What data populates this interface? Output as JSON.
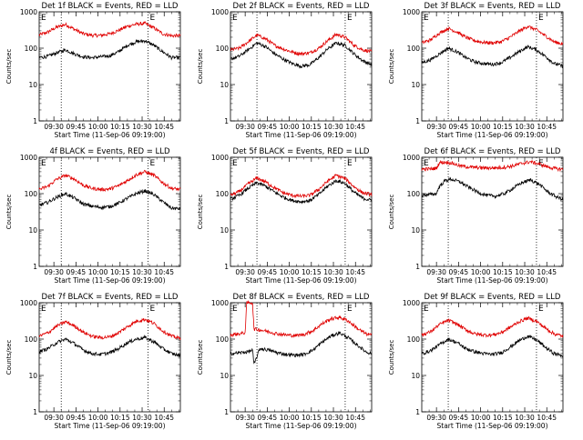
{
  "chart_data": {
    "type": "line",
    "ylabel": "Counts/sec",
    "yscale": "log",
    "ylim": [
      1,
      1000
    ],
    "y_ticks": [
      "1",
      "10",
      "100",
      "1000"
    ],
    "x_ticks": [
      "09:30",
      "09:45",
      "10:00",
      "10:15",
      "10:30",
      "10:45"
    ],
    "x_tick_minutes": [
      30,
      45,
      60,
      75,
      90,
      105
    ],
    "xlim_minutes": [
      20,
      116
    ],
    "xlabel": "Start Time (11-Sep-06 09:19:00)",
    "marker_label": "E",
    "series_colors": {
      "events": "#000000",
      "lld": "#e00000"
    },
    "panels": [
      {
        "title": "Det 1f BLACK = Events, RED = LLD",
        "vlines_minutes": [
          35,
          94
        ],
        "events": {
          "x": [
            20,
            26,
            32,
            38,
            44,
            50,
            56,
            62,
            68,
            74,
            80,
            86,
            92,
            98,
            104,
            110,
            116
          ],
          "y": [
            55,
            60,
            75,
            90,
            70,
            58,
            55,
            58,
            62,
            80,
            120,
            150,
            160,
            120,
            80,
            55,
            55
          ]
        },
        "lld": {
          "x": [
            20,
            26,
            32,
            38,
            44,
            50,
            56,
            62,
            68,
            74,
            80,
            86,
            92,
            98,
            104,
            110,
            116
          ],
          "y": [
            230,
            280,
            380,
            450,
            330,
            250,
            225,
            225,
            250,
            310,
            400,
            460,
            480,
            360,
            250,
            220,
            220
          ]
        }
      },
      {
        "title": "Det 2f BLACK = Events, RED = LLD",
        "vlines_minutes": [
          38,
          98
        ],
        "events": {
          "x": [
            20,
            26,
            32,
            38,
            44,
            50,
            56,
            62,
            68,
            74,
            80,
            86,
            92,
            98,
            104,
            110,
            116
          ],
          "y": [
            50,
            60,
            90,
            140,
            110,
            70,
            50,
            38,
            32,
            35,
            55,
            95,
            140,
            120,
            70,
            45,
            35
          ]
        },
        "lld": {
          "x": [
            20,
            26,
            32,
            38,
            44,
            50,
            56,
            62,
            68,
            74,
            80,
            86,
            92,
            98,
            104,
            110,
            116
          ],
          "y": [
            90,
            100,
            150,
            230,
            180,
            120,
            95,
            78,
            70,
            75,
            100,
            160,
            240,
            200,
            120,
            90,
            80
          ]
        }
      },
      {
        "title": "Det 3f BLACK = Events, RED = LLD",
        "vlines_minutes": [
          38,
          98
        ],
        "events": {
          "x": [
            20,
            26,
            32,
            38,
            44,
            50,
            56,
            62,
            68,
            74,
            80,
            86,
            92,
            98,
            104,
            110,
            116
          ],
          "y": [
            40,
            48,
            70,
            100,
            80,
            55,
            42,
            38,
            36,
            40,
            55,
            80,
            110,
            90,
            60,
            38,
            32
          ]
        },
        "lld": {
          "x": [
            20,
            26,
            32,
            38,
            44,
            50,
            56,
            62,
            68,
            74,
            80,
            86,
            92,
            98,
            104,
            110,
            116
          ],
          "y": [
            140,
            170,
            260,
            350,
            280,
            200,
            160,
            145,
            140,
            150,
            200,
            290,
            400,
            320,
            220,
            150,
            130
          ]
        }
      },
      {
        "title": "4f BLACK = Events, RED = LLD",
        "vlines_minutes": [
          35,
          94
        ],
        "events": {
          "x": [
            20,
            26,
            32,
            38,
            44,
            50,
            56,
            62,
            68,
            74,
            80,
            86,
            92,
            98,
            104,
            110,
            116
          ],
          "y": [
            48,
            58,
            80,
            100,
            75,
            52,
            45,
            42,
            44,
            55,
            75,
            100,
            120,
            95,
            60,
            40,
            38
          ]
        },
        "lld": {
          "x": [
            20,
            26,
            32,
            38,
            44,
            50,
            56,
            62,
            68,
            74,
            80,
            86,
            92,
            98,
            104,
            110,
            116
          ],
          "y": [
            130,
            160,
            250,
            320,
            250,
            170,
            140,
            130,
            135,
            165,
            230,
            330,
            400,
            320,
            200,
            140,
            130
          ]
        }
      },
      {
        "title": "Det 5f BLACK = Events, RED = LLD",
        "vlines_minutes": [
          38,
          98
        ],
        "events": {
          "x": [
            20,
            26,
            32,
            38,
            44,
            50,
            56,
            62,
            68,
            74,
            80,
            86,
            92,
            98,
            104,
            110,
            116
          ],
          "y": [
            70,
            90,
            140,
            200,
            160,
            110,
            80,
            65,
            60,
            65,
            95,
            160,
            230,
            190,
            110,
            75,
            65
          ]
        },
        "lld": {
          "x": [
            20,
            26,
            32,
            38,
            44,
            50,
            56,
            62,
            68,
            74,
            80,
            86,
            92,
            98,
            104,
            110,
            116
          ],
          "y": [
            90,
            115,
            185,
            270,
            210,
            145,
            105,
            90,
            85,
            90,
            130,
            220,
            320,
            260,
            155,
            105,
            95
          ]
        }
      },
      {
        "title": "Det 6f BLACK = Events, RED = LLD",
        "vlines_minutes": [
          38,
          98
        ],
        "events": {
          "x": [
            20,
            26,
            30,
            32,
            36,
            40,
            46,
            52,
            58,
            64,
            70,
            76,
            82,
            88,
            94,
            100,
            106,
            112,
            116
          ],
          "y": [
            90,
            95,
            100,
            160,
            230,
            250,
            210,
            150,
            110,
            90,
            85,
            100,
            140,
            200,
            240,
            180,
            110,
            80,
            70
          ]
        },
        "lld": {
          "x": [
            20,
            26,
            30,
            32,
            36,
            40,
            46,
            52,
            58,
            64,
            70,
            76,
            82,
            88,
            94,
            100,
            106,
            112,
            116
          ],
          "y": [
            470,
            480,
            500,
            720,
            730,
            700,
            580,
            540,
            520,
            510,
            510,
            530,
            580,
            680,
            750,
            650,
            540,
            480,
            470
          ]
        }
      },
      {
        "title": "Det 7f BLACK = Events, RED = LLD",
        "vlines_minutes": [
          35,
          94
        ],
        "events": {
          "x": [
            20,
            26,
            32,
            38,
            44,
            50,
            56,
            62,
            68,
            74,
            80,
            86,
            92,
            98,
            104,
            110,
            116
          ],
          "y": [
            45,
            55,
            80,
            100,
            75,
            50,
            40,
            38,
            42,
            55,
            80,
            100,
            110,
            85,
            55,
            40,
            35
          ]
        },
        "lld": {
          "x": [
            20,
            26,
            32,
            38,
            44,
            50,
            56,
            62,
            68,
            74,
            80,
            86,
            92,
            98,
            104,
            110,
            116
          ],
          "y": [
            120,
            150,
            230,
            300,
            230,
            155,
            120,
            110,
            115,
            150,
            220,
            310,
            350,
            270,
            170,
            120,
            105
          ]
        }
      },
      {
        "title": "Det 8f BLACK = Events, RED = LLD",
        "vlines_minutes": [
          38,
          98
        ],
        "events": {
          "x": [
            20,
            26,
            32,
            35,
            36,
            40,
            46,
            52,
            58,
            64,
            70,
            76,
            82,
            88,
            94,
            100,
            106,
            112,
            116
          ],
          "y": [
            40,
            42,
            45,
            50,
            20,
            55,
            50,
            42,
            38,
            36,
            38,
            50,
            80,
            120,
            150,
            110,
            70,
            45,
            40
          ]
        },
        "lld": {
          "x": [
            20,
            26,
            30,
            31,
            35,
            36,
            40,
            46,
            52,
            58,
            64,
            70,
            76,
            82,
            88,
            94,
            100,
            106,
            112,
            116
          ],
          "y": [
            130,
            140,
            150,
            1000,
            1000,
            190,
            180,
            160,
            140,
            130,
            125,
            135,
            170,
            260,
            360,
            400,
            320,
            200,
            140,
            130
          ]
        }
      },
      {
        "title": "Det 9f BLACK = Events, RED = LLD",
        "vlines_minutes": [
          38,
          98
        ],
        "events": {
          "x": [
            20,
            26,
            32,
            38,
            44,
            50,
            56,
            62,
            68,
            74,
            80,
            86,
            92,
            98,
            104,
            110,
            116
          ],
          "y": [
            40,
            48,
            70,
            100,
            80,
            55,
            45,
            40,
            38,
            42,
            60,
            90,
            120,
            95,
            60,
            40,
            35
          ]
        },
        "lld": {
          "x": [
            20,
            26,
            32,
            38,
            44,
            50,
            56,
            62,
            68,
            74,
            80,
            86,
            92,
            98,
            104,
            110,
            116
          ],
          "y": [
            130,
            160,
            250,
            330,
            260,
            180,
            140,
            130,
            130,
            150,
            210,
            300,
            380,
            310,
            200,
            140,
            120
          ]
        }
      }
    ]
  }
}
